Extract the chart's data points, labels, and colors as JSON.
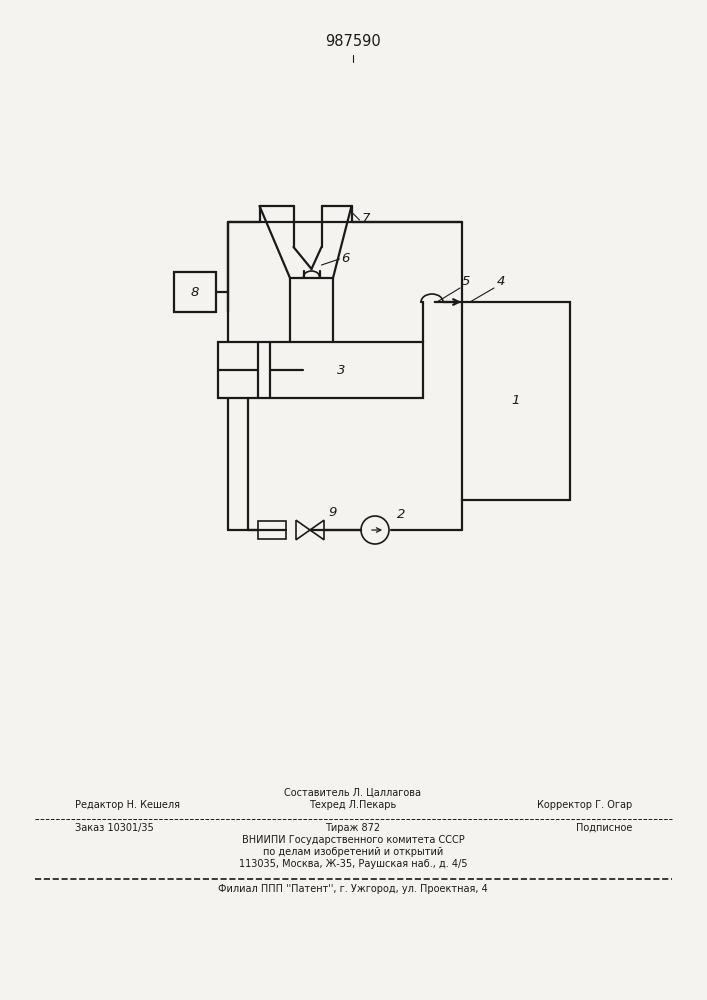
{
  "patent_number": "987590",
  "bg_color": "#f5f3f0",
  "line_color": "#1a1a1a",
  "line_width": 1.6,
  "lw_thin": 1.2,
  "footer_line1_left": "Редактор Н. Кешеля",
  "footer_line1_center_top": "Составитель Л. Цаллагова",
  "footer_line1_center_bot": "Техред Л.Пекарь",
  "footer_line1_right": "Корректор Г. Огар",
  "footer_line2_left": "Заказ 10301/35",
  "footer_line2_center": "Тираж 872",
  "footer_line2_right": "Подписное",
  "footer_line3": "ВНИИПИ Государственного комитета СССР",
  "footer_line4": "по делам изобретений и открытий",
  "footer_line5": "113035, Москва, Ж-35, Раушская наб., д. 4/5",
  "footer_line6": "Филиал ППП ''Патент'', г. Ужгород, ул. Проектная, 4"
}
